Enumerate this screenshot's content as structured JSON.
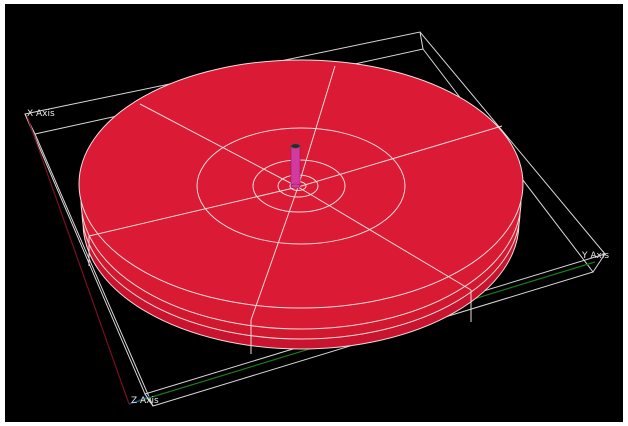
{
  "viewport": {
    "background": "#000000",
    "axes": {
      "x_label": "X Axis",
      "y_label": "Y Axis",
      "z_label": "Z Axis",
      "x_axis_color": "#7a1020",
      "y_axis_color": "#1a7a1a",
      "z_axis_color": "#1a2a9a"
    },
    "model": {
      "disc_color": "#db1a35",
      "disc_edge_color": "#b01228",
      "mesh_line_color": "#f0d8d8",
      "rod_color": "#d23aa0",
      "rod_top_color": "#2a2a2a",
      "bounding_box_color": "#d8d8d8"
    }
  }
}
